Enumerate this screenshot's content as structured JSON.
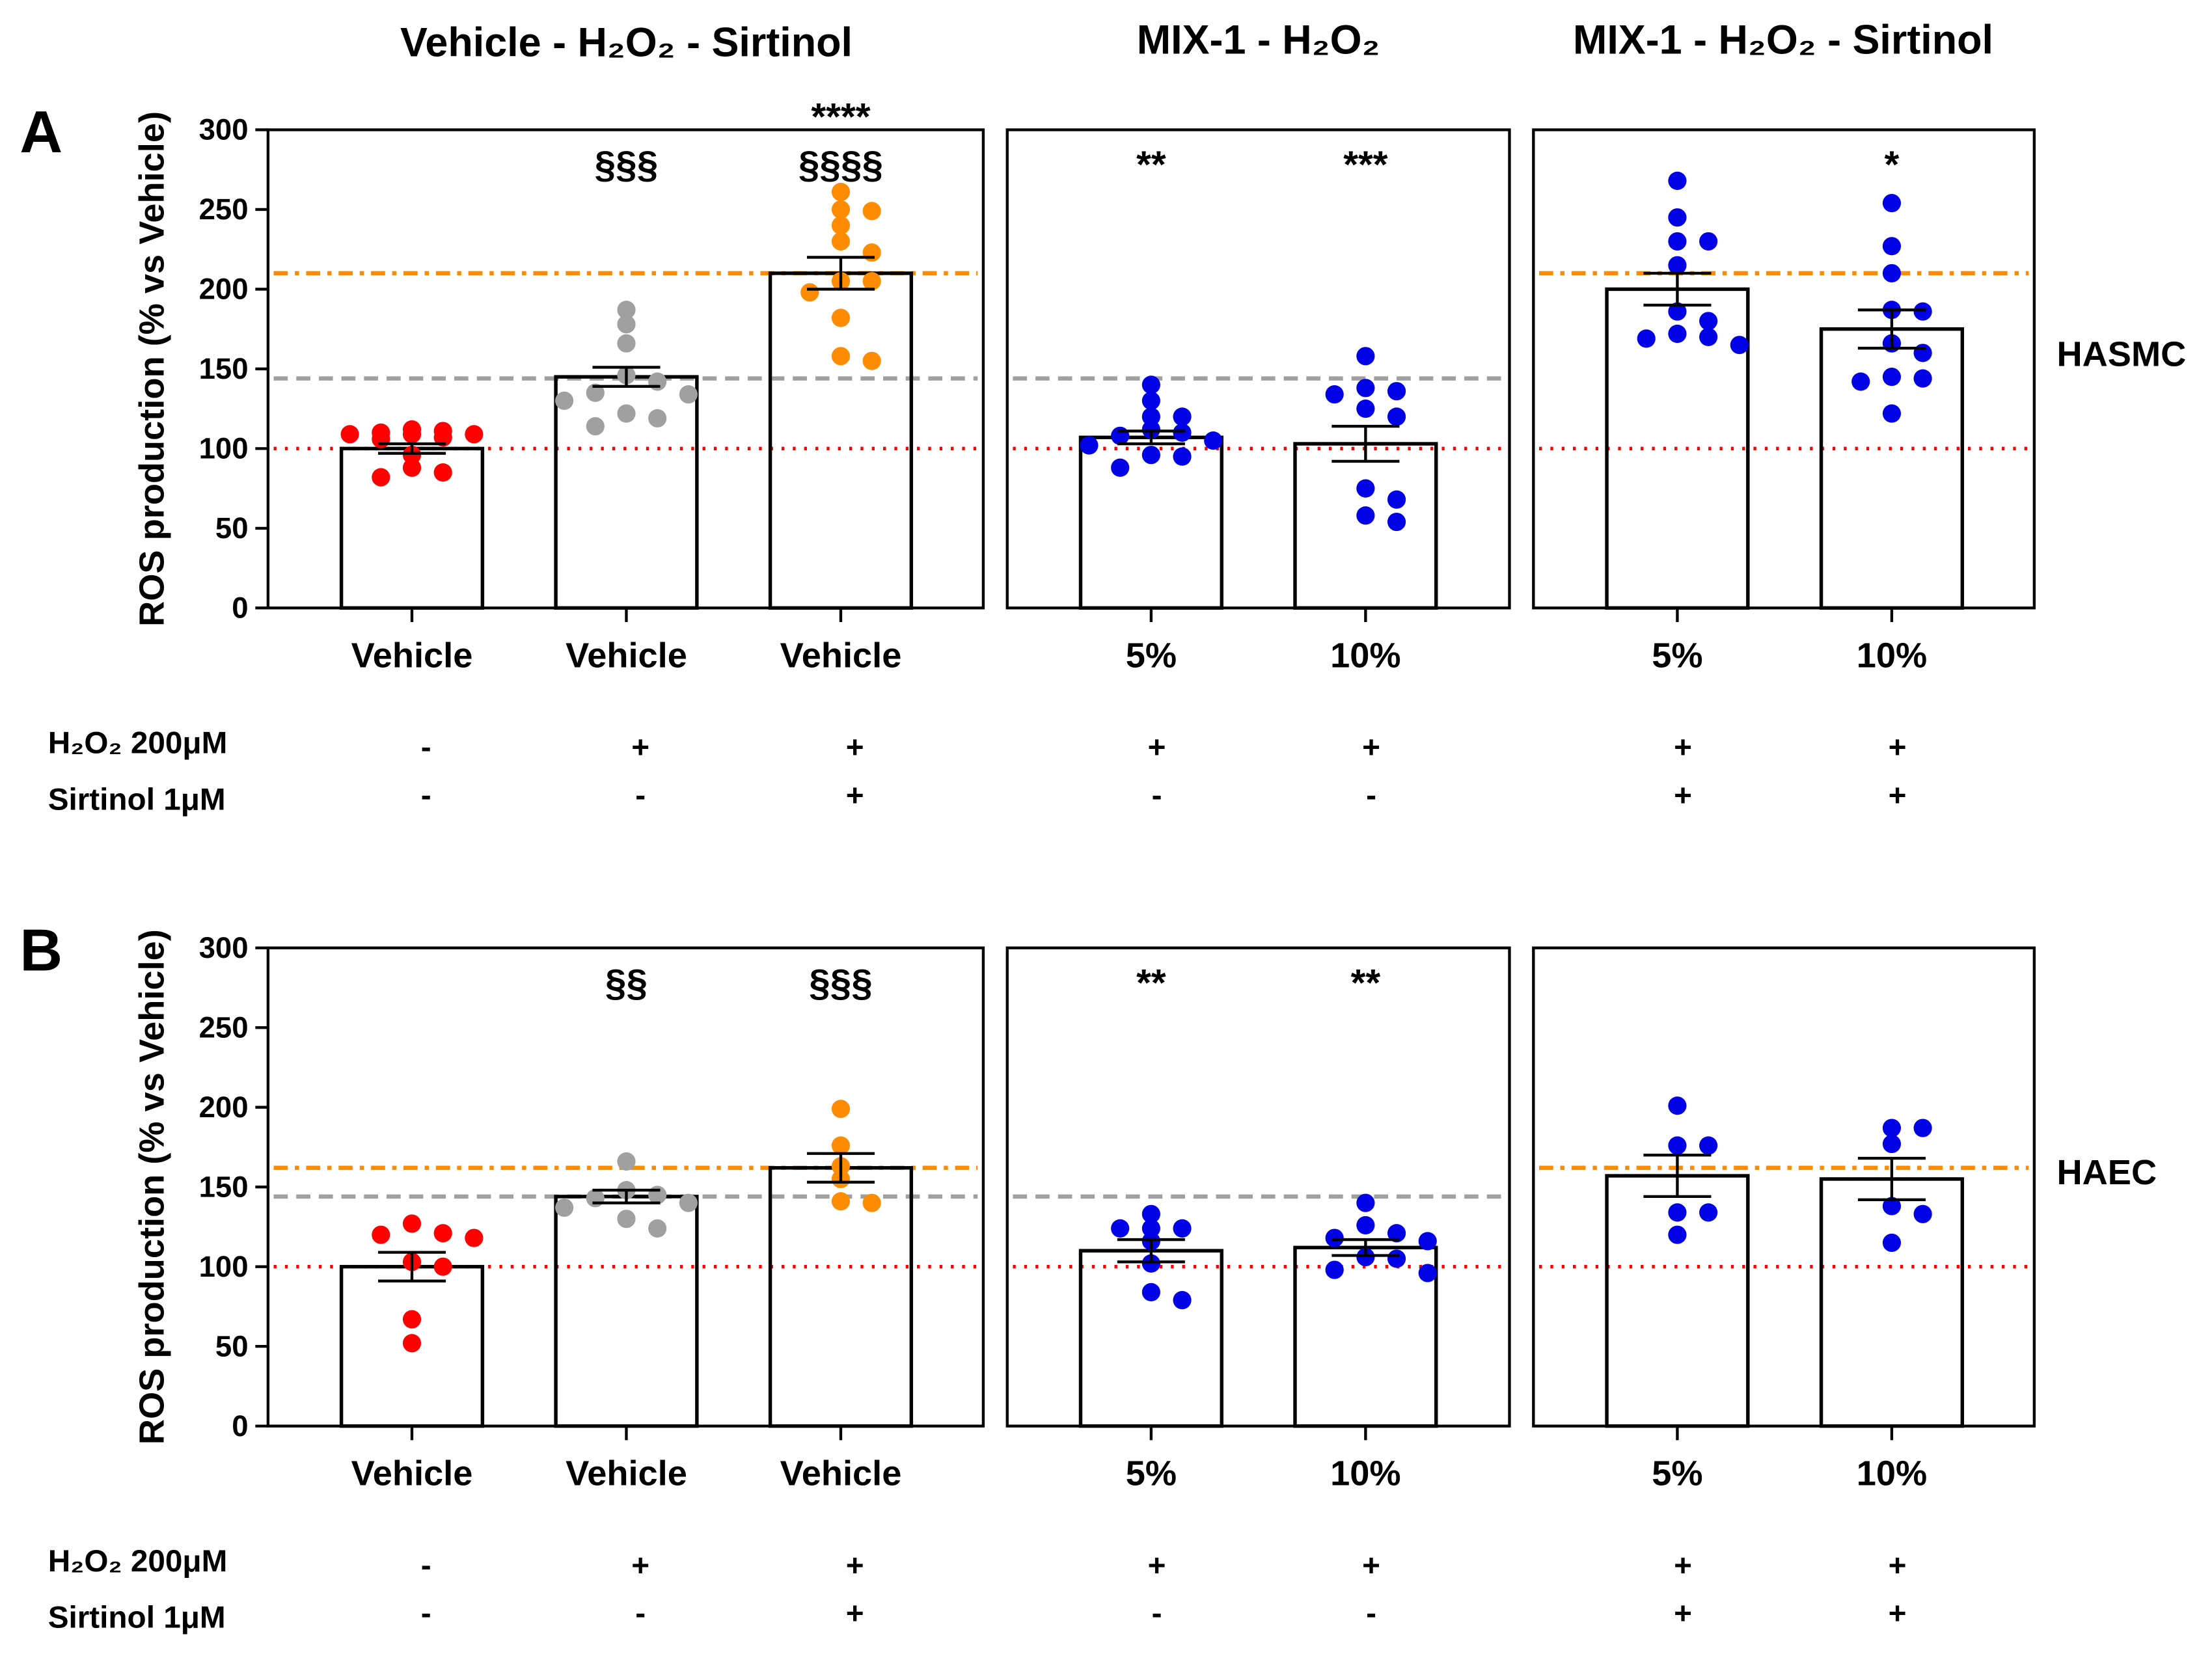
{
  "titles": [
    "Vehicle - H₂O₂ - Sirtinol",
    "MIX-1 - H₂O₂",
    "MIX-1 - H₂O₂ - Sirtinol"
  ],
  "conditions": {
    "h2o2_label": "H₂O₂ 200μM",
    "sirtinol_label": "Sirtinol 1μM",
    "h2o2": [
      "-",
      "+",
      "+",
      "+",
      "+",
      "+",
      "+"
    ],
    "sirtinol": [
      "-",
      "-",
      "+",
      "-",
      "-",
      "+",
      "+"
    ]
  },
  "colors": {
    "vehicle": "#ff0000",
    "h2o2": "#a0a0a0",
    "sirtinol": "#ff8c00",
    "mix": "#0000e6"
  },
  "chart_data": [
    {
      "type": "bar",
      "panel": "A",
      "cell_type": "HASMC",
      "ylabel": "ROS production (% vs Vehicle)",
      "ylim": [
        0,
        300
      ],
      "yticks": [
        0,
        50,
        100,
        150,
        200,
        250,
        300
      ],
      "categories": [
        "Vehicle",
        "Vehicle",
        "Vehicle",
        "5%",
        "10%",
        "5%",
        "10%"
      ],
      "reference_lines": {
        "vehicle": 100,
        "h2o2": 144,
        "sirtinol": 210
      },
      "series": [
        {
          "name": "Vehicle",
          "color_key": "vehicle",
          "mean": 100,
          "sem": 3,
          "annotation": "",
          "points": [
            109,
            111,
            107,
            109,
            106,
            109,
            110,
            112,
            96,
            88,
            82,
            85
          ]
        },
        {
          "name": "Vehicle + H2O2",
          "color_key": "h2o2",
          "mean": 145,
          "sem": 6,
          "annotation": "§§§",
          "points": [
            187,
            178,
            166,
            146,
            135,
            134,
            130,
            122,
            114,
            119,
            142
          ]
        },
        {
          "name": "Vehicle + H2O2 + Sirtinol",
          "color_key": "sirtinol",
          "mean": 210,
          "sem": 10,
          "annotation": "****\n§§§§",
          "points": [
            261,
            250,
            249,
            240,
            230,
            223,
            205,
            205,
            198,
            182,
            158,
            155
          ]
        },
        {
          "name": "MIX-1 5% + H2O2",
          "color_key": "mix",
          "mean": 107,
          "sem": 4,
          "annotation": "**",
          "points": [
            140,
            130,
            120,
            120,
            110,
            112,
            105,
            108,
            95,
            96,
            88,
            102
          ]
        },
        {
          "name": "MIX-1 10% + H2O2",
          "color_key": "mix",
          "mean": 103,
          "sem": 11,
          "annotation": "***",
          "points": [
            158,
            138,
            136,
            134,
            125,
            120,
            75,
            68,
            58,
            54
          ]
        },
        {
          "name": "MIX-1 5% + H2O2 + Sirtinol",
          "color_key": "mix",
          "mean": 200,
          "sem": 10,
          "annotation": "",
          "points": [
            268,
            245,
            230,
            230,
            215,
            186,
            180,
            172,
            170,
            169,
            165
          ]
        },
        {
          "name": "MIX-1 10% + H2O2 + Sirtinol",
          "color_key": "mix",
          "mean": 175,
          "sem": 12,
          "annotation": "*",
          "points": [
            254,
            227,
            210,
            187,
            186,
            166,
            160,
            145,
            142,
            144,
            122
          ]
        }
      ]
    },
    {
      "type": "bar",
      "panel": "B",
      "cell_type": "HAEC",
      "ylabel": "ROS production (% vs Vehicle)",
      "ylim": [
        0,
        300
      ],
      "yticks": [
        0,
        50,
        100,
        150,
        200,
        250,
        300
      ],
      "categories": [
        "Vehicle",
        "Vehicle",
        "Vehicle",
        "5%",
        "10%",
        "5%",
        "10%"
      ],
      "reference_lines": {
        "vehicle": 100,
        "h2o2": 144,
        "sirtinol": 162
      },
      "series": [
        {
          "name": "Vehicle",
          "color_key": "vehicle",
          "mean": 100,
          "sem": 9,
          "annotation": "",
          "points": [
            127,
            118,
            120,
            121,
            100,
            103,
            67,
            52
          ]
        },
        {
          "name": "Vehicle + H2O2",
          "color_key": "h2o2",
          "mean": 144,
          "sem": 4,
          "annotation": "§§",
          "points": [
            166,
            148,
            145,
            143,
            140,
            137,
            130,
            124
          ]
        },
        {
          "name": "Vehicle + H2O2 + Sirtinol",
          "color_key": "sirtinol",
          "mean": 162,
          "sem": 9,
          "annotation": "§§§",
          "points": [
            199,
            176,
            163,
            155,
            141,
            140
          ]
        },
        {
          "name": "MIX-1 5% + H2O2",
          "color_key": "mix",
          "mean": 110,
          "sem": 7,
          "annotation": "**",
          "points": [
            133,
            124,
            124,
            124,
            116,
            102,
            84,
            79
          ]
        },
        {
          "name": "MIX-1 10% + H2O2",
          "color_key": "mix",
          "mean": 112,
          "sem": 5,
          "annotation": "**",
          "points": [
            140,
            126,
            121,
            118,
            116,
            105,
            106,
            98,
            96
          ]
        },
        {
          "name": "MIX-1 5% + H2O2 + Sirtinol",
          "color_key": "mix",
          "mean": 157,
          "sem": 13,
          "annotation": "",
          "points": [
            201,
            176,
            176,
            134,
            134,
            120
          ]
        },
        {
          "name": "MIX-1 10% + H2O2 + Sirtinol",
          "color_key": "mix",
          "mean": 155,
          "sem": 13,
          "annotation": "",
          "points": [
            187,
            187,
            177,
            133,
            138,
            115
          ]
        }
      ]
    }
  ]
}
